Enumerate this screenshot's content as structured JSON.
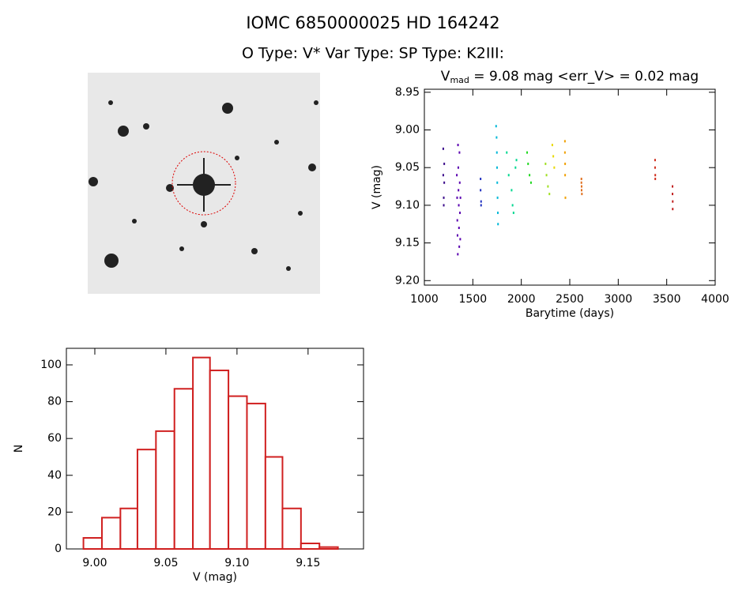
{
  "header": {
    "title": "IOMC 6850000025    HD 164242",
    "subtitle": "O Type: V*   Var Type:    SP Type: K2III:"
  },
  "chart_data": [
    {
      "type": "scatter",
      "title_parts": [
        "V",
        "mad",
        " = 9.08 mag <err_V> = 0.02 mag"
      ],
      "x_label": "Barytime (days)",
      "y_label": "V (mag)",
      "xlim": [
        1000,
        4000
      ],
      "xticks": [
        1000,
        1500,
        2000,
        2500,
        3000,
        3500,
        4000
      ],
      "ylim": [
        9.206,
        8.946
      ],
      "yticks": [
        {
          "value": 8.95,
          "label": "8.95"
        },
        {
          "value": 9.0,
          "label": "9.00"
        },
        {
          "value": 9.05,
          "label": "9.05"
        },
        {
          "value": 9.1,
          "label": "9.10"
        },
        {
          "value": 9.15,
          "label": "9.15"
        },
        {
          "value": 9.2,
          "label": "9.20"
        }
      ],
      "series": [
        {
          "color": "#3a0a8a",
          "x": [
            1195,
            1195,
            1200,
            1200,
            1205,
            1205
          ],
          "values": [
            9.025,
            9.06,
            9.09,
            9.1,
            9.045,
            9.07
          ]
        },
        {
          "color": "#5a00b0",
          "x": [
            1335,
            1338,
            1340,
            1342,
            1345,
            1347,
            1350,
            1352,
            1355,
            1357,
            1360,
            1362,
            1365,
            1367,
            1370,
            1372
          ],
          "values": [
            9.06,
            9.09,
            9.12,
            9.14,
            9.165,
            9.02,
            9.05,
            9.08,
            9.1,
            9.13,
            9.155,
            9.03,
            9.07,
            9.11,
            9.145,
            9.09
          ]
        },
        {
          "color": "#2030c0",
          "x": [
            1580,
            1580,
            1585,
            1585
          ],
          "values": [
            9.065,
            9.08,
            9.095,
            9.1
          ]
        },
        {
          "color": "#00b8d8",
          "x": [
            1740,
            1745,
            1748,
            1750,
            1752,
            1755,
            1758,
            1760
          ],
          "values": [
            8.995,
            9.01,
            9.03,
            9.05,
            9.07,
            9.09,
            9.11,
            9.125
          ]
        },
        {
          "color": "#00d890",
          "x": [
            1850,
            1870,
            1900,
            1910,
            1920,
            1940,
            1950
          ],
          "values": [
            9.03,
            9.06,
            9.08,
            9.1,
            9.11,
            9.05,
            9.04
          ]
        },
        {
          "color": "#20d820",
          "x": [
            2060,
            2070,
            2085,
            2100
          ],
          "values": [
            9.03,
            9.045,
            9.06,
            9.07
          ]
        },
        {
          "color": "#a0e020",
          "x": [
            2250,
            2260,
            2275,
            2290
          ],
          "values": [
            9.045,
            9.06,
            9.075,
            9.085
          ]
        },
        {
          "color": "#e8d800",
          "x": [
            2320,
            2330,
            2340
          ],
          "values": [
            9.02,
            9.035,
            9.05
          ]
        },
        {
          "color": "#f0a000",
          "x": [
            2450,
            2450,
            2452,
            2452,
            2455
          ],
          "values": [
            9.015,
            9.03,
            9.045,
            9.06,
            9.09
          ]
        },
        {
          "color": "#e07020",
          "x": [
            2620,
            2620,
            2622,
            2622,
            2625
          ],
          "values": [
            9.065,
            9.07,
            9.075,
            9.08,
            9.085
          ]
        },
        {
          "color": "#d03020",
          "x": [
            3380,
            3380,
            3382,
            3382
          ],
          "values": [
            9.04,
            9.05,
            9.06,
            9.065
          ]
        },
        {
          "color": "#c02020",
          "x": [
            3560,
            3560,
            3562,
            3562
          ],
          "values": [
            9.075,
            9.085,
            9.095,
            9.105
          ]
        }
      ]
    },
    {
      "type": "histogram",
      "x_label": "V (mag)",
      "y_label": "N",
      "color": "#d02020",
      "bins": [
        8.992,
        9.005,
        9.018,
        9.03,
        9.043,
        9.056,
        9.069,
        9.081,
        9.094,
        9.107,
        9.12,
        9.132,
        9.145,
        9.158,
        9.171
      ],
      "values": [
        6,
        17,
        22,
        54,
        64,
        87,
        104,
        97,
        83,
        79,
        50,
        22,
        3,
        1
      ],
      "xlim": [
        8.98,
        9.189
      ],
      "xticks": [
        {
          "value": 9.0,
          "label": "9.00"
        },
        {
          "value": 9.05,
          "label": "9.05"
        },
        {
          "value": 9.1,
          "label": "9.10"
        },
        {
          "value": 9.15,
          "label": "9.15"
        }
      ],
      "ylim": [
        0,
        109
      ],
      "yticks": [
        0,
        20,
        40,
        60,
        80,
        100
      ]
    }
  ]
}
